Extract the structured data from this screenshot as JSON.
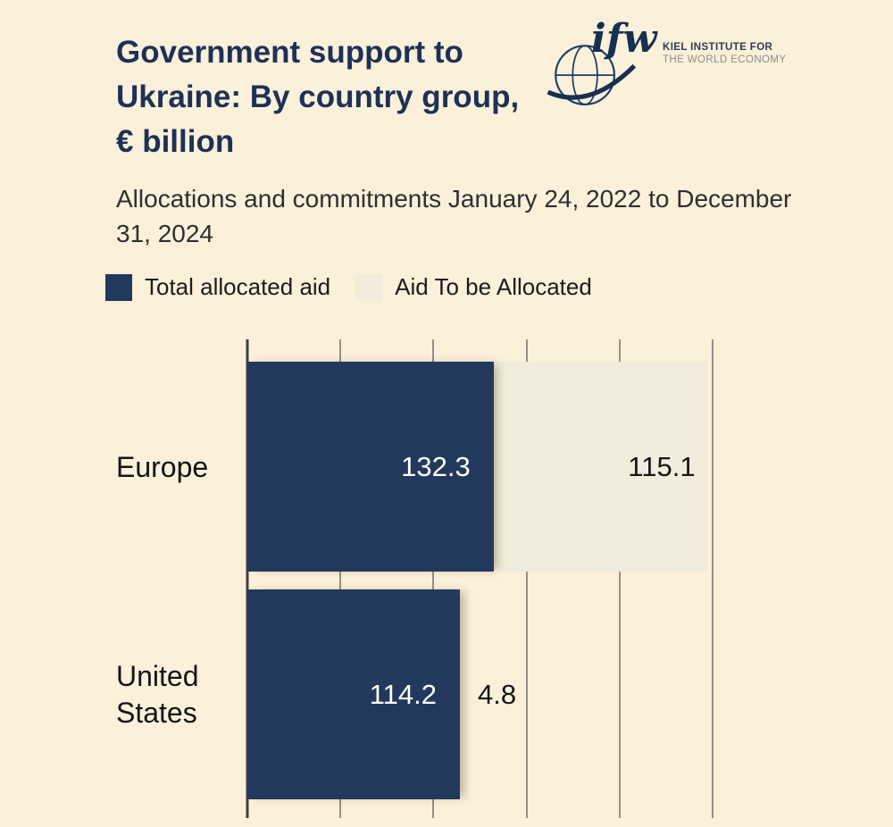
{
  "header": {
    "title": "Government support to Ukraine: By country group, € billion",
    "subtitle": "Allocations and commitments January 24, 2022 to December 31, 2024"
  },
  "logo": {
    "brand": "ifw",
    "line1": "KIEL INSTITUTE FOR",
    "line2": "THE WORLD ECONOMY"
  },
  "legend": [
    {
      "label": "Total allocated aid",
      "color": "#22395d"
    },
    {
      "label": "Aid To be Allocated",
      "color": "#f1ecdb"
    }
  ],
  "chart_data": {
    "type": "bar",
    "orientation": "horizontal",
    "title": "Government support to Ukraine: By country group, € billion",
    "subtitle": "Allocations and commitments January 24, 2022 to December 31, 2024",
    "categories": [
      "Europe",
      "United States"
    ],
    "series": [
      {
        "name": "Total allocated aid",
        "color": "#22395d",
        "values": [
          132.3,
          114.2
        ]
      },
      {
        "name": "Aid To be Allocated",
        "color": "#f1ecdb",
        "values": [
          115.1,
          4.8
        ]
      }
    ],
    "xlim": [
      0,
      250
    ],
    "gridlines": [
      0,
      50,
      100,
      150,
      200,
      250
    ],
    "grid": "vertical",
    "legend_position": "top",
    "value_labels": true
  },
  "colors": {
    "background": "#fbf0da",
    "title": "#1d3156",
    "gridline": "#94908a",
    "axis": "#3f3f3f"
  }
}
